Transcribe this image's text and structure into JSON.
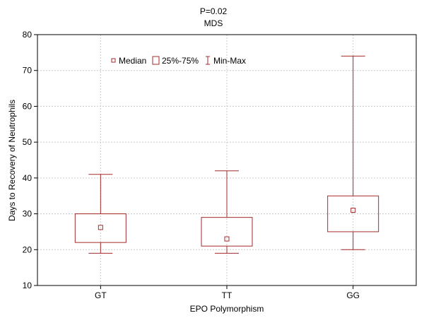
{
  "chart_data": {
    "type": "box",
    "title": "P=0.02",
    "subtitle": "MDS",
    "xlabel": "EPO Polymorphism",
    "ylabel": "Days to Recovery of Neutrophils",
    "ylim": [
      10,
      80
    ],
    "yticks": [
      10,
      20,
      30,
      40,
      50,
      60,
      70,
      80
    ],
    "grid": true,
    "legend_position": "top-left",
    "legend": {
      "median": "Median",
      "box": "25%-75%",
      "range": "Min-Max"
    },
    "categories": [
      "GT",
      "TT",
      "GG"
    ],
    "boxes": [
      {
        "category": "GT",
        "min": 19,
        "q1": 22,
        "median": 26.2,
        "q3": 30,
        "max": 41
      },
      {
        "category": "TT",
        "min": 19,
        "q1": 21,
        "median": 23,
        "q3": 29,
        "max": 42
      },
      {
        "category": "GG",
        "min": 20,
        "q1": 25,
        "median": 31,
        "q3": 35,
        "max": 74
      }
    ],
    "color": "#a52a2a"
  }
}
